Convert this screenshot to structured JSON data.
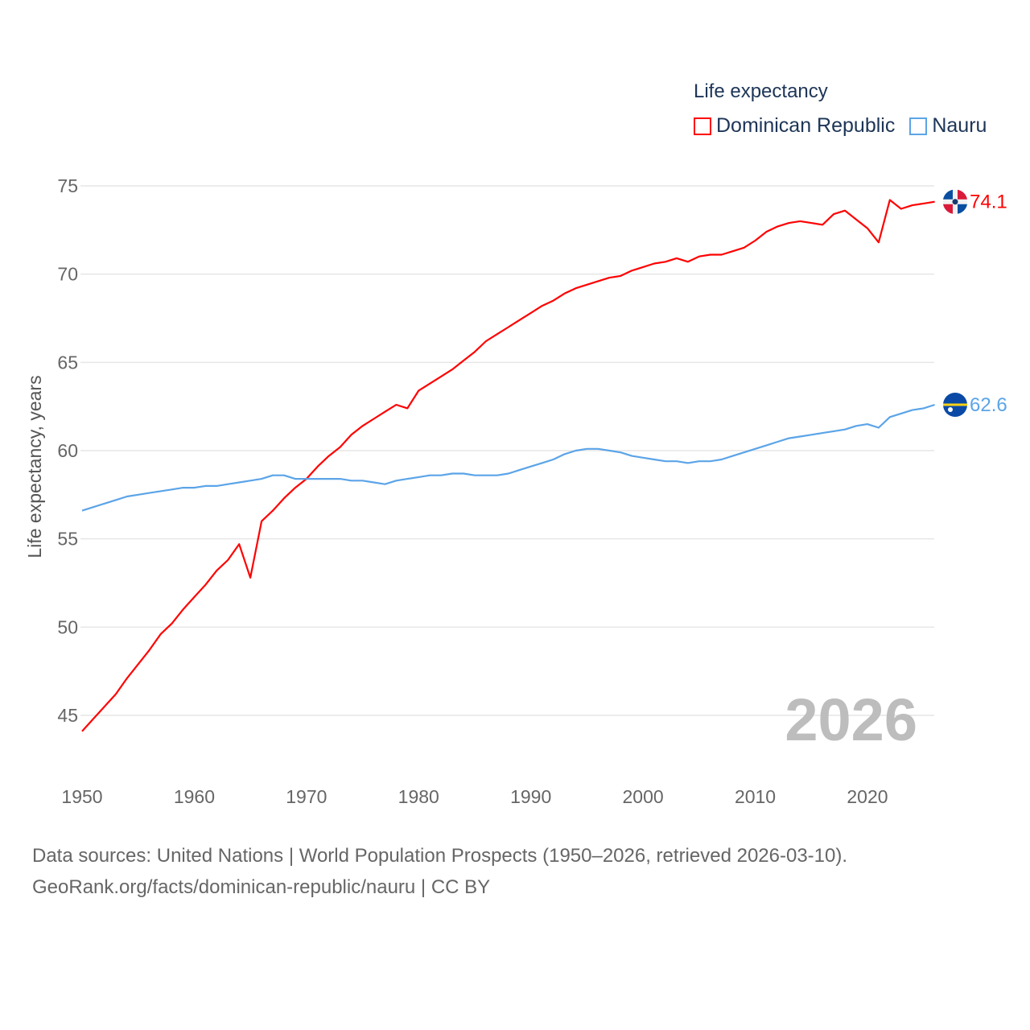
{
  "chart_data": {
    "type": "line",
    "title": "Life expectancy",
    "ylabel": "Life expectancy, years",
    "xlabel": "",
    "year_label": "2026",
    "x": [
      1950,
      1951,
      1952,
      1953,
      1954,
      1955,
      1956,
      1957,
      1958,
      1959,
      1960,
      1961,
      1962,
      1963,
      1964,
      1965,
      1966,
      1967,
      1968,
      1969,
      1970,
      1971,
      1972,
      1973,
      1974,
      1975,
      1976,
      1977,
      1978,
      1979,
      1980,
      1981,
      1982,
      1983,
      1984,
      1985,
      1986,
      1987,
      1988,
      1989,
      1990,
      1991,
      1992,
      1993,
      1994,
      1995,
      1996,
      1997,
      1998,
      1999,
      2000,
      2001,
      2002,
      2003,
      2004,
      2005,
      2006,
      2007,
      2008,
      2009,
      2010,
      2011,
      2012,
      2013,
      2014,
      2015,
      2016,
      2017,
      2018,
      2019,
      2020,
      2021,
      2022,
      2023,
      2024,
      2025,
      2026
    ],
    "xlim": [
      1950,
      2026
    ],
    "ylim": [
      45,
      75
    ],
    "xticks": [
      "1950",
      "1960",
      "1970",
      "1980",
      "1990",
      "2000",
      "2010",
      "2020"
    ],
    "yticks": [
      "45",
      "50",
      "55",
      "60",
      "65",
      "70",
      "75"
    ],
    "grid": true,
    "legend_position": "top-right",
    "series": [
      {
        "name": "Dominican Republic",
        "color": "#ff0000",
        "end_label": "74.1",
        "values": [
          44.1,
          44.8,
          45.5,
          46.2,
          47.1,
          47.9,
          48.7,
          49.6,
          50.2,
          51.0,
          51.7,
          52.4,
          53.2,
          53.8,
          54.7,
          52.8,
          56.0,
          56.6,
          57.3,
          57.9,
          58.4,
          59.1,
          59.7,
          60.2,
          60.9,
          61.4,
          61.8,
          62.2,
          62.6,
          62.4,
          63.4,
          63.8,
          64.2,
          64.6,
          65.1,
          65.6,
          66.2,
          66.6,
          67.0,
          67.4,
          67.8,
          68.2,
          68.5,
          68.9,
          69.2,
          69.4,
          69.6,
          69.8,
          69.9,
          70.2,
          70.4,
          70.6,
          70.7,
          70.9,
          70.7,
          71.0,
          71.1,
          71.1,
          71.3,
          71.5,
          71.9,
          72.4,
          72.7,
          72.9,
          73.0,
          72.9,
          72.8,
          73.4,
          73.6,
          73.1,
          72.6,
          71.8,
          74.2,
          73.7,
          73.9,
          74.0,
          74.1
        ]
      },
      {
        "name": "Nauru",
        "color": "#5ba4e8",
        "end_label": "62.6",
        "values": [
          56.6,
          56.8,
          57.0,
          57.2,
          57.4,
          57.5,
          57.6,
          57.7,
          57.8,
          57.9,
          57.9,
          58.0,
          58.0,
          58.1,
          58.2,
          58.3,
          58.4,
          58.6,
          58.6,
          58.4,
          58.4,
          58.4,
          58.4,
          58.4,
          58.3,
          58.3,
          58.2,
          58.1,
          58.3,
          58.4,
          58.5,
          58.6,
          58.6,
          58.7,
          58.7,
          58.6,
          58.6,
          58.6,
          58.7,
          58.9,
          59.1,
          59.3,
          59.5,
          59.8,
          60.0,
          60.1,
          60.1,
          60.0,
          59.9,
          59.7,
          59.6,
          59.5,
          59.4,
          59.4,
          59.3,
          59.4,
          59.4,
          59.5,
          59.7,
          59.9,
          60.1,
          60.3,
          60.5,
          60.7,
          60.8,
          60.9,
          61.0,
          61.1,
          61.2,
          61.4,
          61.5,
          61.3,
          61.9,
          62.1,
          62.3,
          62.4,
          62.6
        ]
      }
    ]
  },
  "footer": {
    "line1": "Data sources: United Nations | World Population Prospects (1950–2026, retrieved 2026-03-10).",
    "line2": "GeoRank.org/facts/dominican-republic/nauru | CC BY"
  }
}
